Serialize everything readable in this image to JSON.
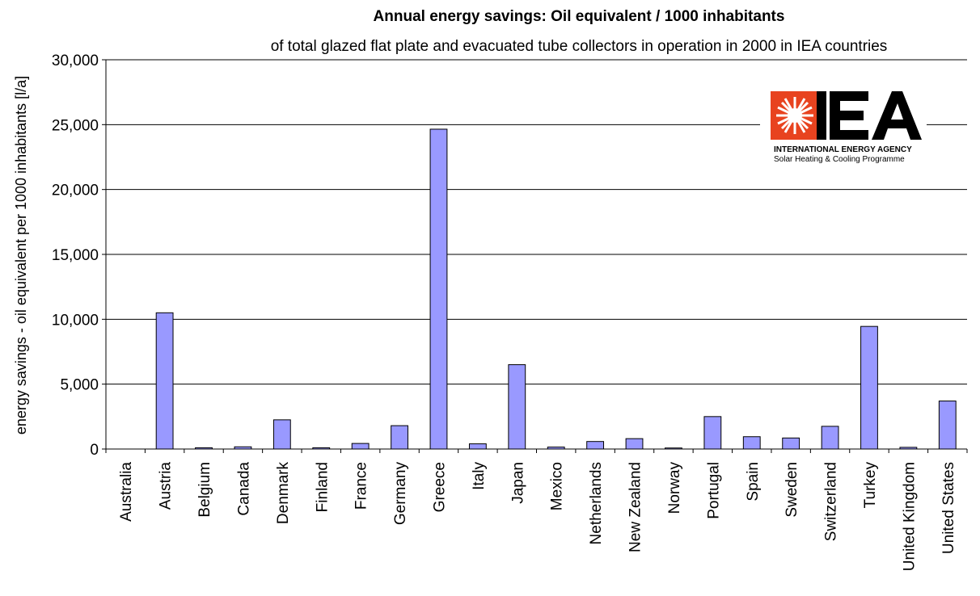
{
  "chart_data": {
    "type": "bar",
    "title": "Annual energy savings: Oil equivalent / 1000 inhabitants",
    "subtitle": "of total glazed flat plate and evacuated tube collectors in operation in 2000 in IEA countries",
    "xlabel": "",
    "ylabel": "energy savings - oil equivalent per 1000 inhabitants [l/a]",
    "ylim": [
      0,
      30000
    ],
    "yticks": [
      0,
      5000,
      10000,
      15000,
      20000,
      25000,
      30000
    ],
    "ytick_labels": [
      "0",
      "5,000",
      "10,000",
      "15,000",
      "20,000",
      "25,000",
      "30,000"
    ],
    "grid": "horizontal",
    "categories": [
      "Australia",
      "Austria",
      "Belgium",
      "Canada",
      "Denmark",
      "Finland",
      "France",
      "Germany",
      "Greece",
      "Italy",
      "Japan",
      "Mexico",
      "Netherlands",
      "New Zealand",
      "Norway",
      "Portugal",
      "Spain",
      "Sweden",
      "Switzerland",
      "Turkey",
      "United Kingdom",
      "United States"
    ],
    "values": [
      0,
      10500,
      100,
      170,
      2250,
      100,
      430,
      1800,
      24650,
      400,
      6500,
      150,
      580,
      800,
      80,
      2500,
      950,
      850,
      1750,
      9450,
      130,
      3700
    ],
    "bar_color": "#9999ff"
  },
  "logo": {
    "letters": "IEA",
    "line1": "INTERNATIONAL ENERGY AGENCY",
    "line2": "Solar Heating & Cooling Programme"
  }
}
